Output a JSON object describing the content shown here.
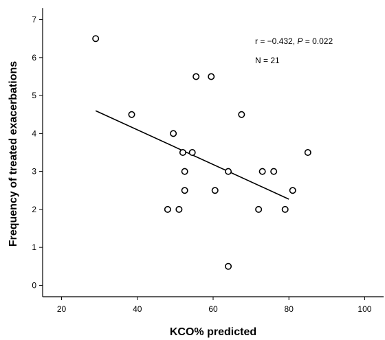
{
  "chart_data": {
    "type": "scatter",
    "title": "",
    "xlabel": "KCO% predicted",
    "ylabel": "Frequency of treated exacerbations",
    "xlim": [
      15,
      105
    ],
    "ylim": [
      -0.3,
      7.3
    ],
    "x_ticks": [
      20,
      40,
      60,
      80,
      100
    ],
    "y_ticks": [
      0,
      1,
      2,
      3,
      4,
      5,
      6,
      7
    ],
    "grid": false,
    "series": [
      {
        "points": [
          {
            "x": 29,
            "y": 6.5
          },
          {
            "x": 38.5,
            "y": 4.5
          },
          {
            "x": 48,
            "y": 2.0
          },
          {
            "x": 49.5,
            "y": 4.0
          },
          {
            "x": 51,
            "y": 2.0
          },
          {
            "x": 52,
            "y": 3.5
          },
          {
            "x": 52.5,
            "y": 3.0
          },
          {
            "x": 52.5,
            "y": 2.5
          },
          {
            "x": 54.5,
            "y": 3.5
          },
          {
            "x": 55.5,
            "y": 5.5
          },
          {
            "x": 59.5,
            "y": 5.5
          },
          {
            "x": 60.5,
            "y": 2.5
          },
          {
            "x": 64,
            "y": 3.0
          },
          {
            "x": 64,
            "y": 0.5
          },
          {
            "x": 67.5,
            "y": 4.5
          },
          {
            "x": 72,
            "y": 2.0
          },
          {
            "x": 73,
            "y": 3.0
          },
          {
            "x": 76,
            "y": 3.0
          },
          {
            "x": 79,
            "y": 2.0
          },
          {
            "x": 81,
            "y": 2.5
          },
          {
            "x": 85,
            "y": 3.5
          }
        ]
      }
    ],
    "regression_line": {
      "x": [
        29,
        80
      ],
      "y": [
        4.6,
        2.27
      ]
    },
    "annotations": {
      "r_prefix": "r  = −0.432, ",
      "p_label": "P",
      "p_suffix": " = 0.022",
      "n_text": "N = 21"
    }
  }
}
